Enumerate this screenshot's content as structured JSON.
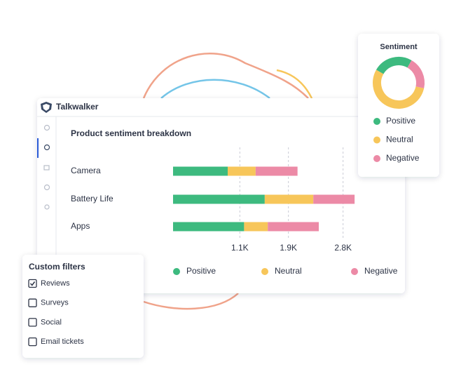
{
  "app_name": "Talkwalker",
  "chart_data": [
    {
      "type": "stacked-bar",
      "title": "Product sentiment breakdown",
      "categories": [
        "Camera",
        "Battery Life",
        "Apps"
      ],
      "series": [
        {
          "name": "Positive",
          "color": "#3dba7f",
          "values": [
            900,
            1510,
            1170
          ]
        },
        {
          "name": "Neutral",
          "color": "#f7c65a",
          "values": [
            460,
            800,
            390
          ]
        },
        {
          "name": "Negative",
          "color": "#ec8aa6",
          "values": [
            690,
            680,
            840
          ]
        }
      ],
      "xlim": [
        0,
        3000
      ],
      "xticks": [
        {
          "value": 1100,
          "label": "1.1K"
        },
        {
          "value": 1900,
          "label": "1.9K"
        },
        {
          "value": 2800,
          "label": "2.8K"
        }
      ],
      "grid": true
    },
    {
      "type": "donut",
      "title": "Sentiment",
      "categories": [
        "Positive",
        "Neutral",
        "Negative"
      ],
      "values": [
        25,
        55,
        20
      ],
      "colors": [
        "#3dba7f",
        "#f7c65a",
        "#ec8aa6"
      ]
    }
  ],
  "filters": {
    "title": "Custom filters",
    "items": [
      {
        "label": "Reviews",
        "checked": true
      },
      {
        "label": "Surveys",
        "checked": false
      },
      {
        "label": "Social",
        "checked": false
      },
      {
        "label": "Email tickets",
        "checked": false
      }
    ]
  }
}
